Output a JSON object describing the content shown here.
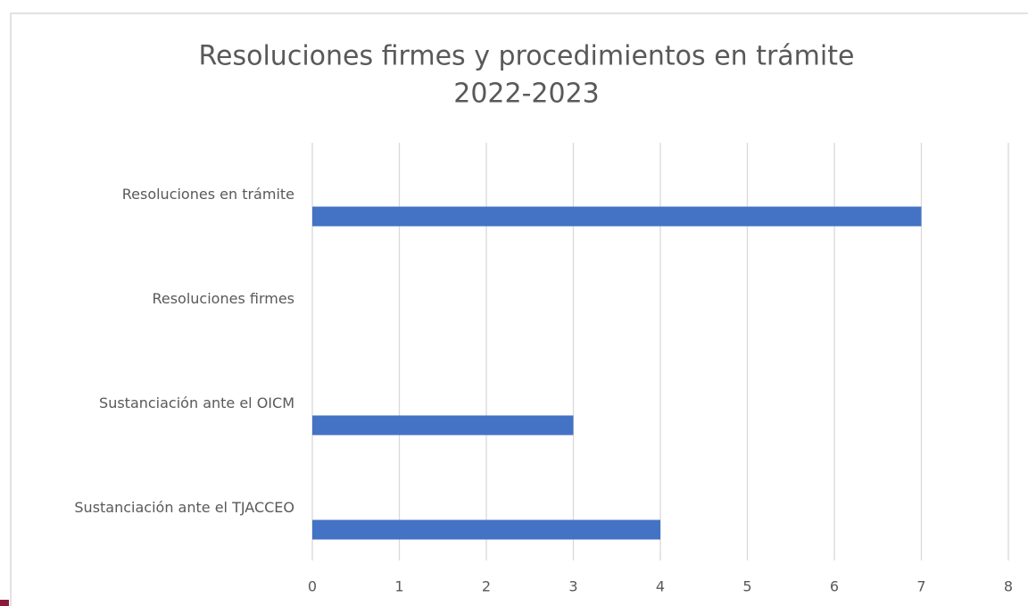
{
  "chart_data": {
    "type": "bar",
    "orientation": "horizontal",
    "title": "Resoluciones firmes y procedimientos en trámite",
    "subtitle": "2022-2023",
    "categories": [
      "Resoluciones en trámite",
      "Resoluciones firmes",
      "Sustanciación ante el OICM",
      "Sustanciación ante el TJACCEO"
    ],
    "values": [
      7,
      0,
      3,
      4
    ],
    "color": "#4472c4",
    "xlim": [
      0,
      8
    ],
    "xticks": [
      0,
      1,
      2,
      3,
      4,
      5,
      6,
      7,
      8
    ],
    "grid": true
  }
}
